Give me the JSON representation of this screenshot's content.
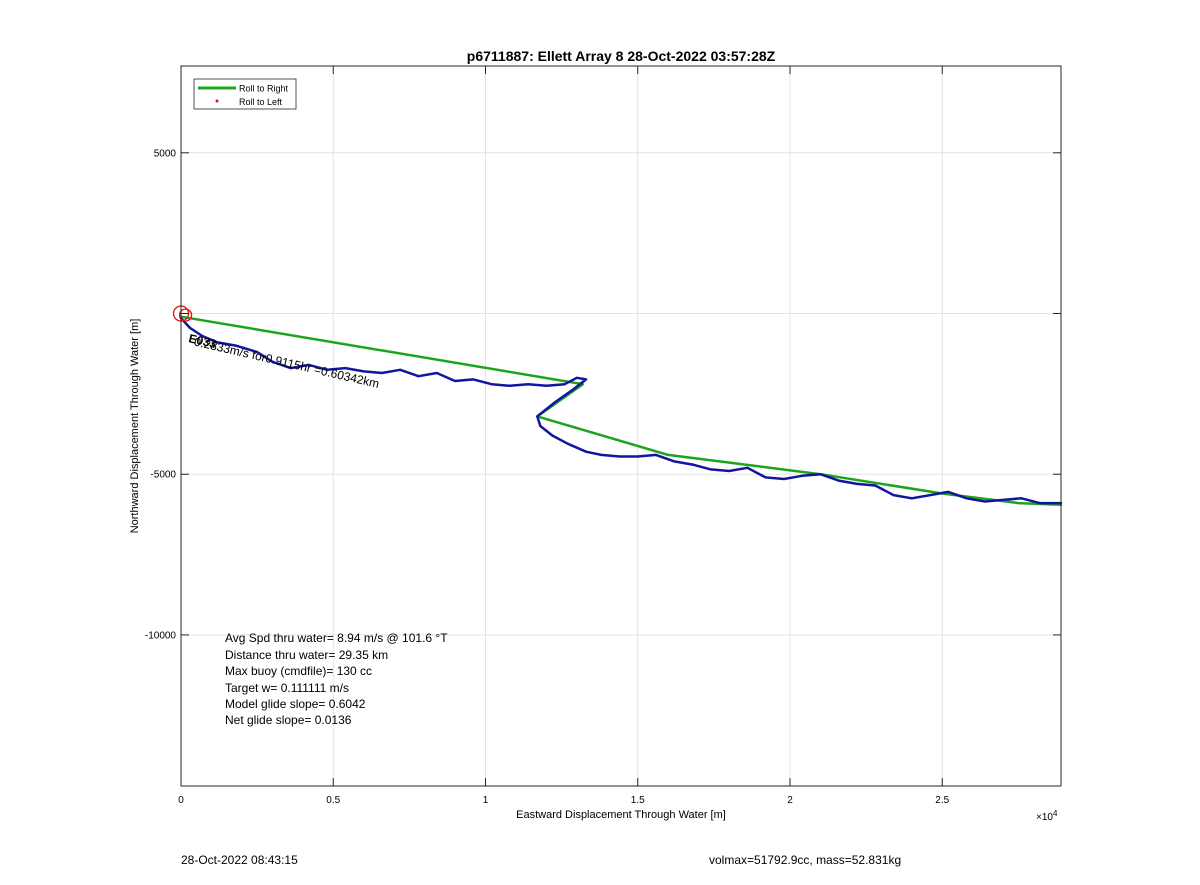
{
  "chart_data": {
    "type": "line",
    "title": "p6711887: Ellett Array 8 28-Oct-2022 03:57:28Z",
    "xlabel": "Eastward Displacement Through Water [m]",
    "ylabel": "Northward Displacement Through Water [m]",
    "x_exponent_label": "×10",
    "x_exponent_power": "4",
    "xlim": [
      0,
      28900
    ],
    "ylim": [
      -14700,
      7700
    ],
    "x_ticks": [
      0,
      5000,
      10000,
      15000,
      20000,
      25000
    ],
    "x_tick_labels": [
      "0",
      "0.5",
      "1",
      "1.5",
      "2",
      "2.5"
    ],
    "y_ticks": [
      5000,
      0,
      -5000,
      -10000
    ],
    "y_tick_labels": [
      "5000",
      "",
      "-5000",
      "-10000"
    ],
    "grid": true,
    "legend": {
      "position": "top-left",
      "entries": [
        {
          "label": "Roll to Right",
          "color": "#1aa51a",
          "style": "line"
        },
        {
          "label": "Roll to Left",
          "color": "#e01010",
          "style": "dot"
        }
      ]
    },
    "series": [
      {
        "color": "#1aa51a",
        "x": [
          0,
          13200,
          11700,
          16000,
          21000,
          25000,
          27500,
          28900
        ],
        "y": [
          -100,
          -2200,
          -3200,
          -4400,
          -5000,
          -5600,
          -5900,
          -5950
        ]
      },
      {
        "color": "#1414a0",
        "x": [
          0,
          300,
          700,
          1200,
          1800,
          2500,
          3000,
          3600,
          4200,
          4800,
          5400,
          6000,
          6600,
          7200,
          7800,
          8400,
          9000,
          9600,
          10200,
          10800,
          11400,
          12000,
          12600,
          13000,
          13300,
          12900,
          12300,
          11900,
          11700,
          11800,
          12200,
          12700,
          13300,
          13800,
          14400,
          15000,
          15600,
          16200,
          16800,
          17400,
          18000,
          18600,
          19200,
          19800,
          20400,
          21000,
          21600,
          22200,
          22800,
          23400,
          24000,
          24600,
          25200,
          25800,
          26400,
          27000,
          27600,
          28200,
          28900
        ],
        "y": [
          -150,
          -450,
          -700,
          -900,
          -1000,
          -1200,
          -1500,
          -1700,
          -1600,
          -1750,
          -1700,
          -1800,
          -1850,
          -1750,
          -1950,
          -1850,
          -2100,
          -2050,
          -2200,
          -2250,
          -2200,
          -2250,
          -2200,
          -2000,
          -2050,
          -2350,
          -2750,
          -3050,
          -3200,
          -3500,
          -3800,
          -4050,
          -4300,
          -4400,
          -4450,
          -4450,
          -4400,
          -4600,
          -4700,
          -4850,
          -4900,
          -4800,
          -5100,
          -5150,
          -5050,
          -5000,
          -5200,
          -5300,
          -5350,
          -5650,
          -5750,
          -5650,
          -5550,
          -5750,
          -5850,
          -5800,
          -5750,
          -5900,
          -5900
        ]
      }
    ],
    "markers": [
      {
        "type": "circle",
        "color": "#e01010",
        "x": 0,
        "y": 0,
        "size": 15
      },
      {
        "type": "circle",
        "color": "#e01010",
        "x": 150,
        "y": -50,
        "size": 12
      }
    ],
    "plot_annotation": {
      "text": "0.2833m/s for0.9115hr =0.60342km",
      "x": 80,
      "y": -40,
      "angle_deg": 13
    },
    "plot_annotation_prefix": "E033",
    "stats": [
      "Avg Spd thru water=  8.94 m/s @ 101.6 °T",
      "Distance thru water= 29.35 km",
      "Max buoy (cmdfile)= 130 cc",
      "Target w= 0.111111 m/s",
      "Model glide slope= 0.6042",
      "Net glide slope= 0.0136"
    ]
  },
  "footer": {
    "date": "28-Oct-2022 08:43:15",
    "info": "volmax=51792.9cc, mass=52.831kg"
  }
}
